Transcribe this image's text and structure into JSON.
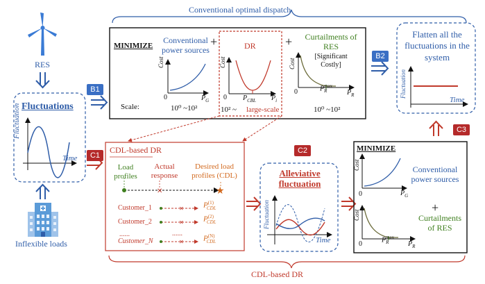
{
  "colors": {
    "blue": "#2f5da8",
    "red": "#c0392b",
    "green": "#3f7f1f",
    "orange": "#d2691e",
    "badge_blue": "#3a6fc4",
    "badge_red": "#b52a2a"
  },
  "top_brace_label": "Conventional optimal dispatch",
  "bottom_brace_label": "CDL-based DR",
  "res_label": "RES",
  "inflexible_label": "Inflexible loads",
  "fluctuations_title": "Fluctuations",
  "axis": {
    "fluctuation": "Fluctuation",
    "time": "Time",
    "cost": "Cost",
    "zero": "0"
  },
  "badges": {
    "b1": "B1",
    "b2": "B2",
    "c1": "C1",
    "c2": "C2",
    "c3": "C3"
  },
  "dispatch": {
    "minimize": "MINIMIZE",
    "conv_sources": "Conventional power sources",
    "plus": "+",
    "dr": "DR",
    "curtail_title": "Curtailments of RES",
    "curtail_note": "[Significant Costly]",
    "scale_label": "Scale:",
    "scale_conv": "10⁰ ~10²",
    "scale_dr_a": "10² ~",
    "scale_dr_b": "large-scale",
    "scale_curt": "10⁰ ~10²",
    "pg": "P",
    "pg_sub": "G",
    "pcbl": "P",
    "pcbl_sub": "CBL",
    "pi": "P",
    "pi_sub": "i",
    "pr": "P",
    "pr_sub": "R",
    "prmax": "P",
    "prmax_sup": "max",
    "prmax_sub": "R"
  },
  "flatten_text": "Flatten all the fluctuations in the system",
  "cdl": {
    "title": "CDL-based DR",
    "load_profiles": "Load profiles",
    "actual_response": "Actual response",
    "desired": "Desired load profiles (CDL)",
    "customers": [
      "Customer_1",
      "Customer_2",
      "......",
      "Customer_N"
    ],
    "dots": "......",
    "pcdl": "P",
    "pcdl_sub": "CDL",
    "sups": [
      "(1)",
      "(2)",
      "(N)"
    ]
  },
  "alleviative_title": "Alleviative fluctuation",
  "min2": {
    "minimize": "MINIMIZE",
    "conv_sources": "Conventional power sources",
    "plus": "+",
    "curtail": "Curtailments of RES"
  }
}
